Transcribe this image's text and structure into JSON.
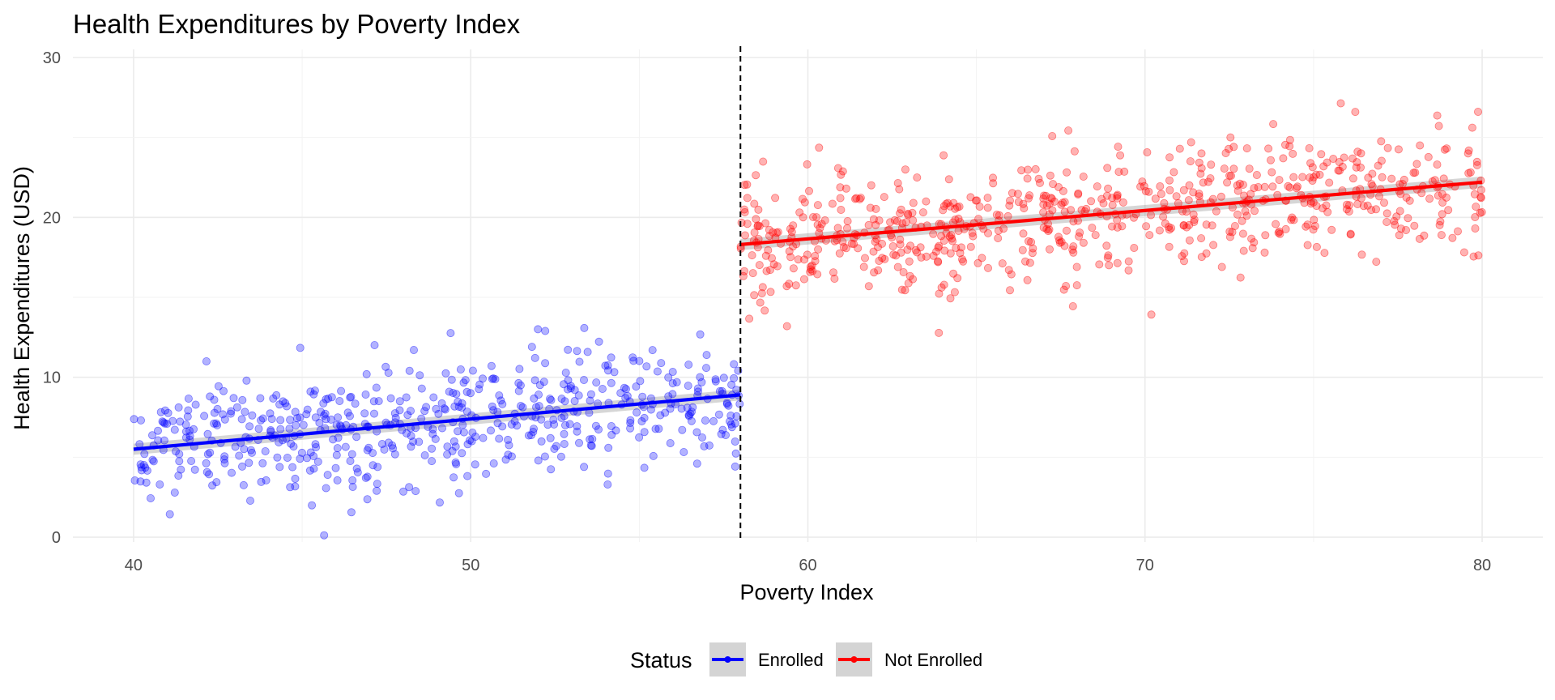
{
  "chart_data": {
    "type": "scatter",
    "title": "Health Expenditures by Poverty Index",
    "xlabel": "Poverty Index",
    "ylabel": "Health Expenditures (USD)",
    "xlim": [
      38.2,
      81.8
    ],
    "ylim": [
      -0.3,
      30.5
    ],
    "xticks": [
      40,
      50,
      60,
      70,
      80
    ],
    "yticks": [
      0,
      10,
      20,
      30
    ],
    "grid": true,
    "cutoff": 58,
    "legend": {
      "title": "Status",
      "placement": "bottom",
      "entries": [
        "Enrolled",
        "Not Enrolled"
      ]
    },
    "series": [
      {
        "name": "Enrolled",
        "color": "#0000ff",
        "x_range": [
          40,
          58
        ],
        "n_points": 560,
        "noise_sd": 2.0,
        "trend": {
          "x": [
            40,
            58
          ],
          "y": [
            5.5,
            8.9
          ]
        }
      },
      {
        "name": "Not Enrolled",
        "color": "#ff0000",
        "x_range": [
          58,
          80
        ],
        "n_points": 700,
        "noise_sd": 2.0,
        "trend": {
          "x": [
            58,
            80
          ],
          "y": [
            18.3,
            22.2
          ]
        }
      }
    ]
  }
}
